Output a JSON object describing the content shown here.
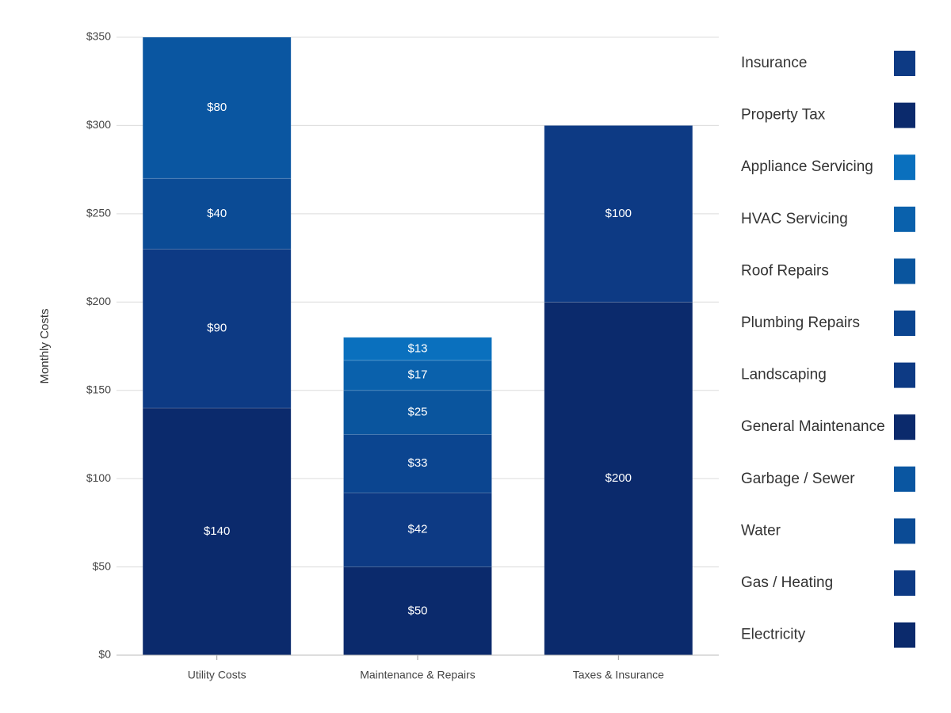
{
  "chart_data": {
    "type": "stacked_bar",
    "y_label": "Monthly Costs",
    "categories": [
      "Utility Costs",
      "Maintenance & Repairs",
      "Taxes & Insurance"
    ],
    "series": [
      {
        "name": "Electricity",
        "color": "#0b2a6c",
        "values": [
          140,
          null,
          null
        ],
        "value_labels": [
          "$140",
          null,
          null
        ]
      },
      {
        "name": "Gas / Heating",
        "color": "#0d3a84",
        "values": [
          90,
          null,
          null
        ],
        "value_labels": [
          "$90",
          null,
          null
        ]
      },
      {
        "name": "Water",
        "color": "#0b4b95",
        "values": [
          40,
          null,
          null
        ],
        "value_labels": [
          "$40",
          null,
          null
        ]
      },
      {
        "name": "Garbage / Sewer",
        "color": "#0a56a1",
        "values": [
          80,
          null,
          null
        ],
        "value_labels": [
          "$80",
          null,
          null
        ]
      },
      {
        "name": "General Maintenance",
        "color": "#0b2a6c",
        "values": [
          null,
          50,
          null
        ],
        "value_labels": [
          null,
          "$50",
          null
        ]
      },
      {
        "name": "Landscaping",
        "color": "#0d3a84",
        "values": [
          null,
          42,
          null
        ],
        "value_labels": [
          null,
          "$42",
          null
        ]
      },
      {
        "name": "Plumbing Repairs",
        "color": "#0b4590",
        "values": [
          null,
          33,
          null
        ],
        "value_labels": [
          null,
          "$33",
          null
        ]
      },
      {
        "name": "Roof Repairs",
        "color": "#0a559e",
        "values": [
          null,
          25,
          null
        ],
        "value_labels": [
          null,
          "$25",
          null
        ]
      },
      {
        "name": "HVAC Servicing",
        "color": "#0a61ac",
        "values": [
          null,
          17,
          null
        ],
        "value_labels": [
          null,
          "$17",
          null
        ]
      },
      {
        "name": "Appliance Servicing",
        "color": "#0a70be",
        "values": [
          null,
          13,
          null
        ],
        "value_labels": [
          null,
          "$13",
          null
        ]
      },
      {
        "name": "Property Tax",
        "color": "#0b2a6c",
        "values": [
          null,
          null,
          200
        ],
        "value_labels": [
          null,
          null,
          "$200"
        ]
      },
      {
        "name": "Insurance",
        "color": "#0d3a84",
        "values": [
          null,
          null,
          100
        ],
        "value_labels": [
          null,
          null,
          "$100"
        ]
      }
    ],
    "ylim": [
      0,
      350
    ],
    "yticks": [
      {
        "value": 0,
        "label": "$0"
      },
      {
        "value": 50,
        "label": "$50"
      },
      {
        "value": 100,
        "label": "$100"
      },
      {
        "value": 150,
        "label": "$150"
      },
      {
        "value": 200,
        "label": "$200"
      },
      {
        "value": 250,
        "label": "$250"
      },
      {
        "value": 300,
        "label": "$300"
      },
      {
        "value": 350,
        "label": "$350"
      }
    ],
    "grid": true,
    "legend": "right"
  }
}
